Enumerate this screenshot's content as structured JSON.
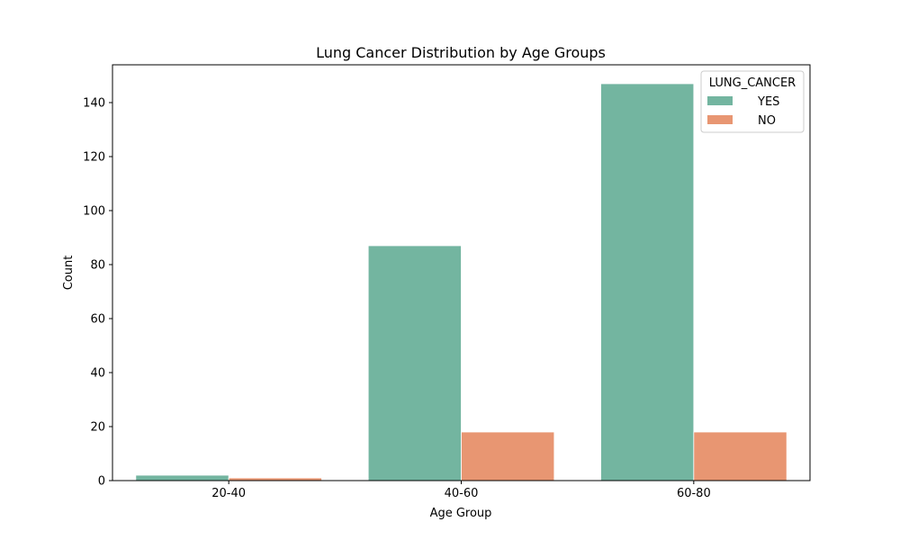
{
  "chart_data": {
    "type": "bar",
    "title": "Lung Cancer Distribution by Age Groups",
    "xlabel": "Age Group",
    "ylabel": "Count",
    "categories": [
      "20-40",
      "40-60",
      "60-80"
    ],
    "ylim": [
      0,
      154
    ],
    "yticks": [
      "0",
      "20",
      "40",
      "60",
      "80",
      "100",
      "120",
      "140"
    ],
    "grid": false,
    "legend": {
      "title": "LUNG_CANCER",
      "placement": "top-right"
    },
    "series": [
      {
        "name": "YES",
        "color": "#73b5a0",
        "values": [
          2,
          87,
          147
        ]
      },
      {
        "name": "NO",
        "color": "#e89672",
        "values": [
          1,
          18,
          18
        ]
      }
    ]
  }
}
